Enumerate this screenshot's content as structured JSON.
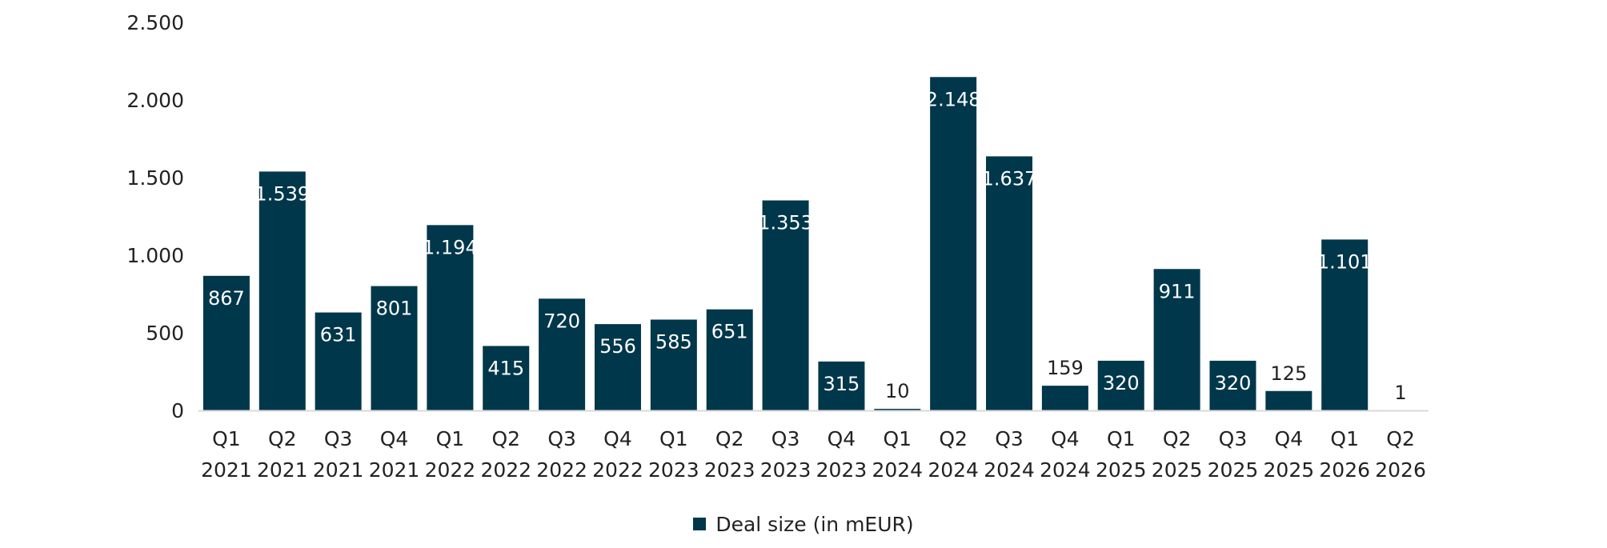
{
  "chart_data": {
    "type": "bar",
    "categories": [
      [
        "Q1",
        "2021"
      ],
      [
        "Q2",
        "2021"
      ],
      [
        "Q3",
        "2021"
      ],
      [
        "Q4",
        "2021"
      ],
      [
        "Q1",
        "2022"
      ],
      [
        "Q2",
        "2022"
      ],
      [
        "Q3",
        "2022"
      ],
      [
        "Q4",
        "2022"
      ],
      [
        "Q1",
        "2023"
      ],
      [
        "Q2",
        "2023"
      ],
      [
        "Q3",
        "2023"
      ],
      [
        "Q4",
        "2023"
      ],
      [
        "Q1",
        "2024"
      ],
      [
        "Q2",
        "2024"
      ],
      [
        "Q3",
        "2024"
      ],
      [
        "Q4",
        "2024"
      ],
      [
        "Q1",
        "2025"
      ],
      [
        "Q2",
        "2025"
      ],
      [
        "Q3",
        "2025"
      ],
      [
        "Q4",
        "2025"
      ],
      [
        "Q1",
        "2026"
      ],
      [
        "Q2",
        "2026"
      ]
    ],
    "series": [
      {
        "name": "Deal size (in mEUR)",
        "color": "#00374a",
        "values": [
          867,
          1539,
          631,
          801,
          1194,
          415,
          720,
          556,
          585,
          651,
          1353,
          315,
          10,
          2148,
          1637,
          159,
          320,
          911,
          320,
          125,
          1101,
          1
        ],
        "labels": [
          "867",
          "1.539",
          "631",
          "801",
          "1.194",
          "415",
          "720",
          "556",
          "585",
          "651",
          "1.353",
          "315",
          "10",
          "2.148",
          "1.637",
          "159",
          "320",
          "911",
          "320",
          "125",
          "1.101",
          "1"
        ]
      }
    ],
    "ylim": [
      0,
      2500
    ],
    "yticks": [
      0,
      500,
      1000,
      1500,
      2000,
      2500
    ],
    "ytick_labels": [
      "0",
      "500",
      "1.000",
      "1.500",
      "2.000",
      "2.500"
    ],
    "grid": false,
    "legend": {
      "position": "bottom-center",
      "label": "Deal size (in mEUR)"
    }
  }
}
